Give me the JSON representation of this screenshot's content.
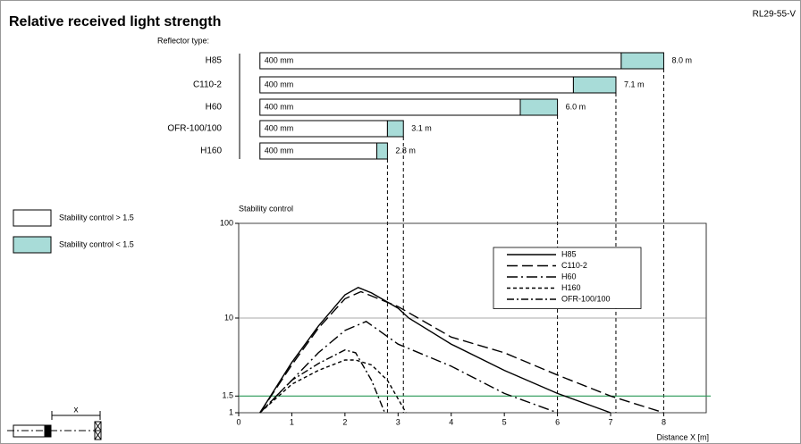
{
  "header": {
    "title": "Relative received light strength",
    "code": "RL29-55-V"
  },
  "diagram": {
    "label": "x"
  },
  "chart_data": [
    {
      "type": "range_bar",
      "subtitle": "Reflector type:",
      "categories": [
        "H85",
        "C110-2",
        "H60",
        "OFR-100/100",
        "H160"
      ],
      "series": [
        {
          "name": "Stability control > 1.5",
          "color": "#ffffff",
          "starts": [
            0.4,
            0.4,
            0.4,
            0.4,
            0.4
          ],
          "start_labels": [
            "400 mm",
            "400 mm",
            "400 mm",
            "400 mm",
            "400 mm"
          ],
          "values": [
            7.2,
            6.3,
            5.3,
            2.8,
            2.6
          ]
        },
        {
          "name": "Stability control < 1.5",
          "color": "#a8dcd8",
          "values": [
            8.0,
            7.1,
            6.0,
            3.1,
            2.8
          ],
          "value_labels": [
            "8.0 m",
            "7.1 m",
            "6.0 m",
            "3.1 m",
            "2.8 m"
          ]
        }
      ]
    },
    {
      "type": "line",
      "ylabel": "Stability control",
      "xlabel": "Distance X [m]",
      "xlim": [
        0,
        8.8
      ],
      "xticks": [
        0,
        1,
        2,
        3,
        4,
        5,
        6,
        7,
        8
      ],
      "ylim": [
        1,
        100
      ],
      "yticks": [
        1,
        1.5,
        10,
        100
      ],
      "log_y": true,
      "grid": true,
      "reference_line": {
        "value": 1.5,
        "color": "#2e9e5a"
      },
      "series": [
        {
          "name": "H85",
          "color": "#000000",
          "dash": "none",
          "x": [
            0.4,
            1,
            1.5,
            2,
            2.25,
            2.5,
            3,
            3.2,
            4,
            5,
            6,
            7
          ],
          "values": [
            1,
            3.4,
            8.2,
            17.6,
            21,
            18.4,
            12.7,
            10,
            5.3,
            2.8,
            1.6,
            1
          ]
        },
        {
          "name": "C110-2",
          "color": "#000000",
          "dash": "12 5",
          "x": [
            0.4,
            1,
            1.5,
            2,
            2.3,
            3,
            4,
            5,
            6,
            7,
            8
          ],
          "values": [
            1,
            3.2,
            7.8,
            16,
            19,
            13.2,
            6.3,
            4.3,
            2.5,
            1.5,
            1
          ]
        },
        {
          "name": "H60",
          "color": "#000000",
          "dash": "12 4 2 4",
          "x": [
            0.4,
            1,
            1.5,
            2,
            2.4,
            3,
            4,
            5,
            6
          ],
          "values": [
            1,
            2.2,
            4.3,
            7.4,
            9.2,
            5.3,
            3.1,
            1.6,
            1
          ]
        },
        {
          "name": "H160",
          "color": "#000000",
          "dash": "4 3",
          "x": [
            0.4,
            1,
            1.5,
            2,
            2.2,
            2.5,
            2.8,
            3.15
          ],
          "values": [
            1,
            2.0,
            2.8,
            3.6,
            3.6,
            3.2,
            2.2,
            1
          ]
        },
        {
          "name": "OFR-100/100",
          "color": "#000000",
          "dash": "8 3 2 3",
          "x": [
            0.4,
            1,
            1.5,
            2,
            2.2,
            2.5,
            2.75
          ],
          "values": [
            1,
            2.2,
            3.3,
            4.6,
            4.3,
            2.2,
            1
          ]
        }
      ]
    }
  ]
}
